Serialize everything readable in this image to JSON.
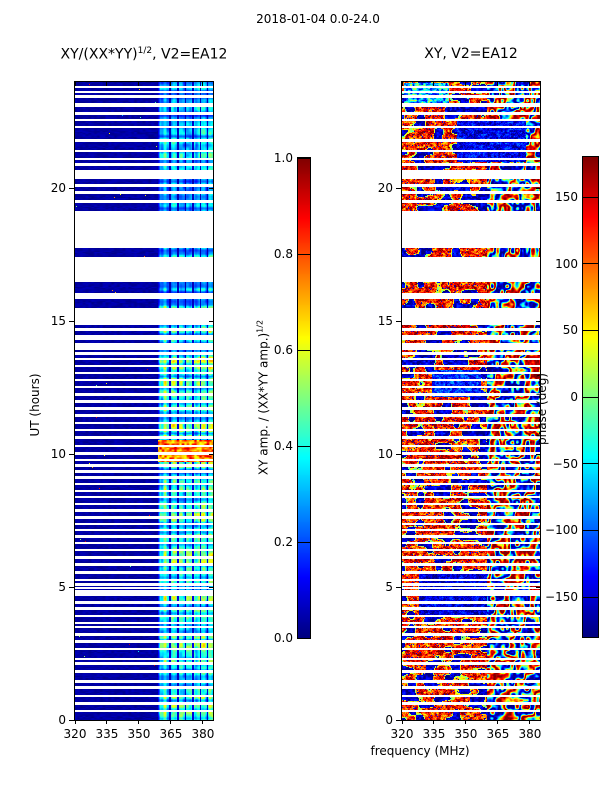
{
  "figure": {
    "title": "2018-01-04 0.0-24.0"
  },
  "labels": {
    "amp_title_pre": "XY/(XX*YY)",
    "amp_title_sup": "1/2",
    "amp_title_post": ", V2=EA12",
    "phase_title": "XY, V2=EA12",
    "ylabel": "UT (hours)",
    "xlabel": "frequency (MHz)",
    "amp_cbar_pre": "XY amp. / (XX*YY amp.)",
    "amp_cbar_sup": "1/2",
    "phase_cbar_label": "phase (deg)"
  },
  "axes": {
    "x_tick_labels": [
      "320",
      "335",
      "350",
      "365",
      "380"
    ],
    "x_tick_values": [
      320,
      335,
      350,
      365,
      380
    ],
    "y_tick_labels": [
      "0",
      "5",
      "10",
      "15",
      "20"
    ],
    "y_tick_values": [
      0,
      5,
      10,
      15,
      20
    ],
    "x_range": [
      320,
      384.7
    ],
    "y_range": [
      0,
      24
    ]
  },
  "colorbars": {
    "amp": {
      "range": [
        0,
        1
      ],
      "ticks": [
        {
          "label": "1.0",
          "value": 1.0
        },
        {
          "label": "0.8",
          "value": 0.8
        },
        {
          "label": "0.6",
          "value": 0.6
        },
        {
          "label": "0.4",
          "value": 0.4
        },
        {
          "label": "0.2",
          "value": 0.2
        },
        {
          "label": "0.0",
          "value": 0.0
        }
      ]
    },
    "phase": {
      "range": [
        -180,
        180
      ],
      "ticks": [
        {
          "label": "150",
          "value": 150
        },
        {
          "label": "100",
          "value": 100
        },
        {
          "label": "50",
          "value": 50
        },
        {
          "label": "0",
          "value": 0
        },
        {
          "label": "−50",
          "value": -50
        },
        {
          "label": "−100",
          "value": -100
        },
        {
          "label": "−150",
          "value": -150
        }
      ]
    }
  },
  "chart_data": {
    "type": "heatmap",
    "colormap": "jet",
    "key_colors": {
      "no_data": "#ffffff",
      "low_amp_navy": "#000080",
      "high_amp_red": "#800000"
    },
    "x_range": [
      320,
      384.7
    ],
    "t_range": [
      0,
      24
    ],
    "time_gaps": {
      "white_blocks": [
        [
          13.93,
          14.17
        ],
        [
          14.3,
          14.48
        ],
        [
          14.62,
          14.74
        ],
        [
          14.87,
          15.48
        ],
        [
          15.82,
          16.06
        ],
        [
          16.46,
          17.4
        ],
        [
          17.74,
          19.16
        ],
        [
          20.34,
          20.68
        ],
        [
          21.36,
          21.46
        ],
        [
          23.07,
          23.2
        ]
      ],
      "thin_gaps": [
        0.33,
        0.62,
        0.9,
        1.22,
        1.45,
        1.82,
        2.12,
        2.3,
        2.68,
        2.95,
        3.22,
        3.5,
        3.65,
        3.92,
        4.2,
        4.42,
        4.72,
        4.84,
        4.97,
        5.1,
        5.27,
        5.55,
        5.85,
        6.12,
        6.4,
        6.65,
        6.9,
        7.15,
        7.38,
        7.62,
        7.88,
        8.12,
        8.38,
        8.62,
        8.88,
        9.12,
        9.35,
        9.58,
        9.78,
        10.02,
        10.3,
        10.62,
        10.92,
        11.18,
        11.45,
        11.72,
        11.98,
        12.25,
        12.52,
        12.78,
        13.05,
        13.32,
        13.58,
        13.78,
        19.5,
        19.85,
        20.1,
        20.9,
        21.1,
        21.8,
        22.3,
        22.57,
        22.82,
        23.45,
        23.62,
        23.82
      ],
      "thin_gap_half_width_hours": 0.045
    },
    "panels": [
      {
        "id": "amp",
        "title": "XY/(XX*YY)^1/2, V2=EA12",
        "value_range": [
          0,
          1
        ],
        "background_value_range": [
          0.01,
          0.06
        ],
        "band": {
          "f_start": 358.8,
          "f_end": 384.7,
          "notch_freqs": [
            364.6,
            368.2,
            371.9,
            375.3,
            378.9,
            382.2
          ],
          "typical_value_range": [
            0.15,
            0.6
          ],
          "dim_factor_above_t": 16,
          "dim_factor": 0.72
        },
        "hot_rows": {
          "t": [
            9.72,
            10.55
          ],
          "value_range": [
            0.6,
            0.93
          ]
        }
      },
      {
        "id": "phase",
        "title": "XY, V2=EA12",
        "value_range": [
          -180,
          180
        ],
        "noisy_region": {
          "f_end": 360,
          "dominant_phase": 125,
          "blue_patch_threshold": 0.33,
          "blue_patch_phase": -155
        },
        "smooth_band": {
          "f_start": 360
        },
        "features": [
          {
            "t": [
              3.9,
              5.6
            ],
            "f": [
              328,
              360
            ],
            "phase": -150,
            "spread": 70
          },
          {
            "t": [
              12.15,
              13.15
            ],
            "f": [
              334,
              357
            ],
            "phase": -120,
            "spread": 90
          },
          {
            "t": [
              21.0,
              22.6
            ],
            "f": [
              346,
              378
            ],
            "phase": -140,
            "spread": 80
          },
          {
            "t": [
              23.2,
              23.95
            ],
            "f": [
              321,
              342
            ],
            "phase": -60,
            "spread": 200
          }
        ]
      }
    ]
  }
}
